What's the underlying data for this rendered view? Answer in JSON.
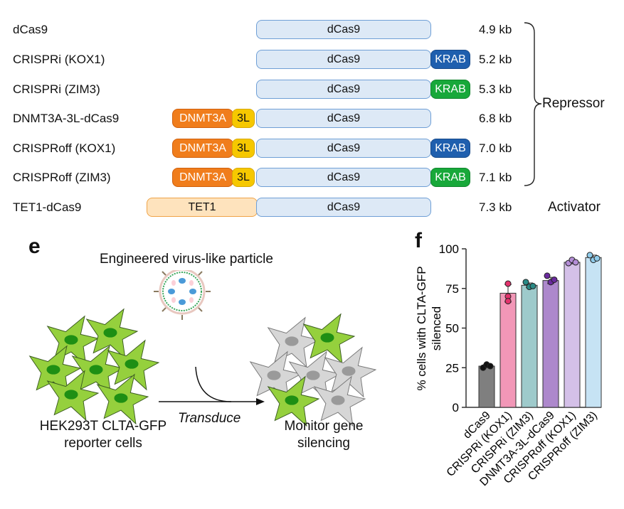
{
  "constructs": [
    {
      "name": "dCas9",
      "domains": {
        "core": "dCas9"
      },
      "size": "4.9 kb"
    },
    {
      "name": "CRISPRi (KOX1)",
      "domains": {
        "core": "dCas9",
        "krab": "KRAB"
      },
      "size": "5.2 kb"
    },
    {
      "name": "CRISPRi (ZIM3)",
      "domains": {
        "core": "dCas9",
        "krab": "KRAB"
      },
      "size": "5.3 kb"
    },
    {
      "name": "DNMT3A-3L-dCas9",
      "domains": {
        "core": "dCas9",
        "dnmt": "DNMT3A",
        "tl": "3L"
      },
      "size": "6.8 kb"
    },
    {
      "name": "CRISPRoff (KOX1)",
      "domains": {
        "core": "dCas9",
        "dnmt": "DNMT3A",
        "tl": "3L",
        "krab": "KRAB"
      },
      "size": "7.0 kb"
    },
    {
      "name": "CRISPRoff (ZIM3)",
      "domains": {
        "core": "dCas9",
        "dnmt": "DNMT3A",
        "tl": "3L",
        "krab": "KRAB"
      },
      "size": "7.1 kb"
    },
    {
      "name": "TET1-dCas9",
      "domains": {
        "core": "dCas9",
        "tet": "TET1"
      },
      "size": "7.3 kb"
    }
  ],
  "groups": {
    "repressor": "Repressor",
    "activator": "Activator"
  },
  "panel_e": {
    "label": "e",
    "vlp_title": "Engineered virus-like particle",
    "arrow_label": "Transduce",
    "left_caption_1": "HEK293T CLTA-GFP",
    "left_caption_2": "reporter cells",
    "right_caption_1": "Monitor gene",
    "right_caption_2": "silencing"
  },
  "panel_f": {
    "label": "f"
  },
  "chart_data": {
    "type": "bar",
    "categories": [
      "dCas9",
      "CRISPRi (KOX1)",
      "CRISPRi (ZIM3)",
      "DNMT3A-3L-dCas9",
      "CRISPRoff (KOX1)",
      "CRISPRoff (ZIM3)"
    ],
    "values": [
      26,
      72,
      77,
      80,
      91.5,
      94.5
    ],
    "points": [
      [
        25,
        27,
        26
      ],
      [
        78,
        70,
        67
      ],
      [
        79,
        76,
        76.5
      ],
      [
        83,
        79,
        80.5
      ],
      [
        91,
        93,
        91.5
      ],
      [
        96,
        93,
        94
      ]
    ],
    "errors": [
      1,
      5.5,
      1.5,
      2,
      1,
      1.5
    ],
    "ylabel_1": "% cells with CLTA-GFP",
    "ylabel_2": "silenced",
    "ylim": [
      0,
      100
    ],
    "yticks": [
      0,
      25,
      50,
      75,
      100
    ],
    "bar_colors": [
      "#7f7f7f",
      "#f297b7",
      "#9ecacb",
      "#ad88cc",
      "#d4c0e8",
      "#c6e3f4"
    ],
    "point_colors": [
      "#111111",
      "#e2336c",
      "#2a8a86",
      "#6a2a9e",
      "#b58ed8",
      "#8fcbea"
    ]
  }
}
